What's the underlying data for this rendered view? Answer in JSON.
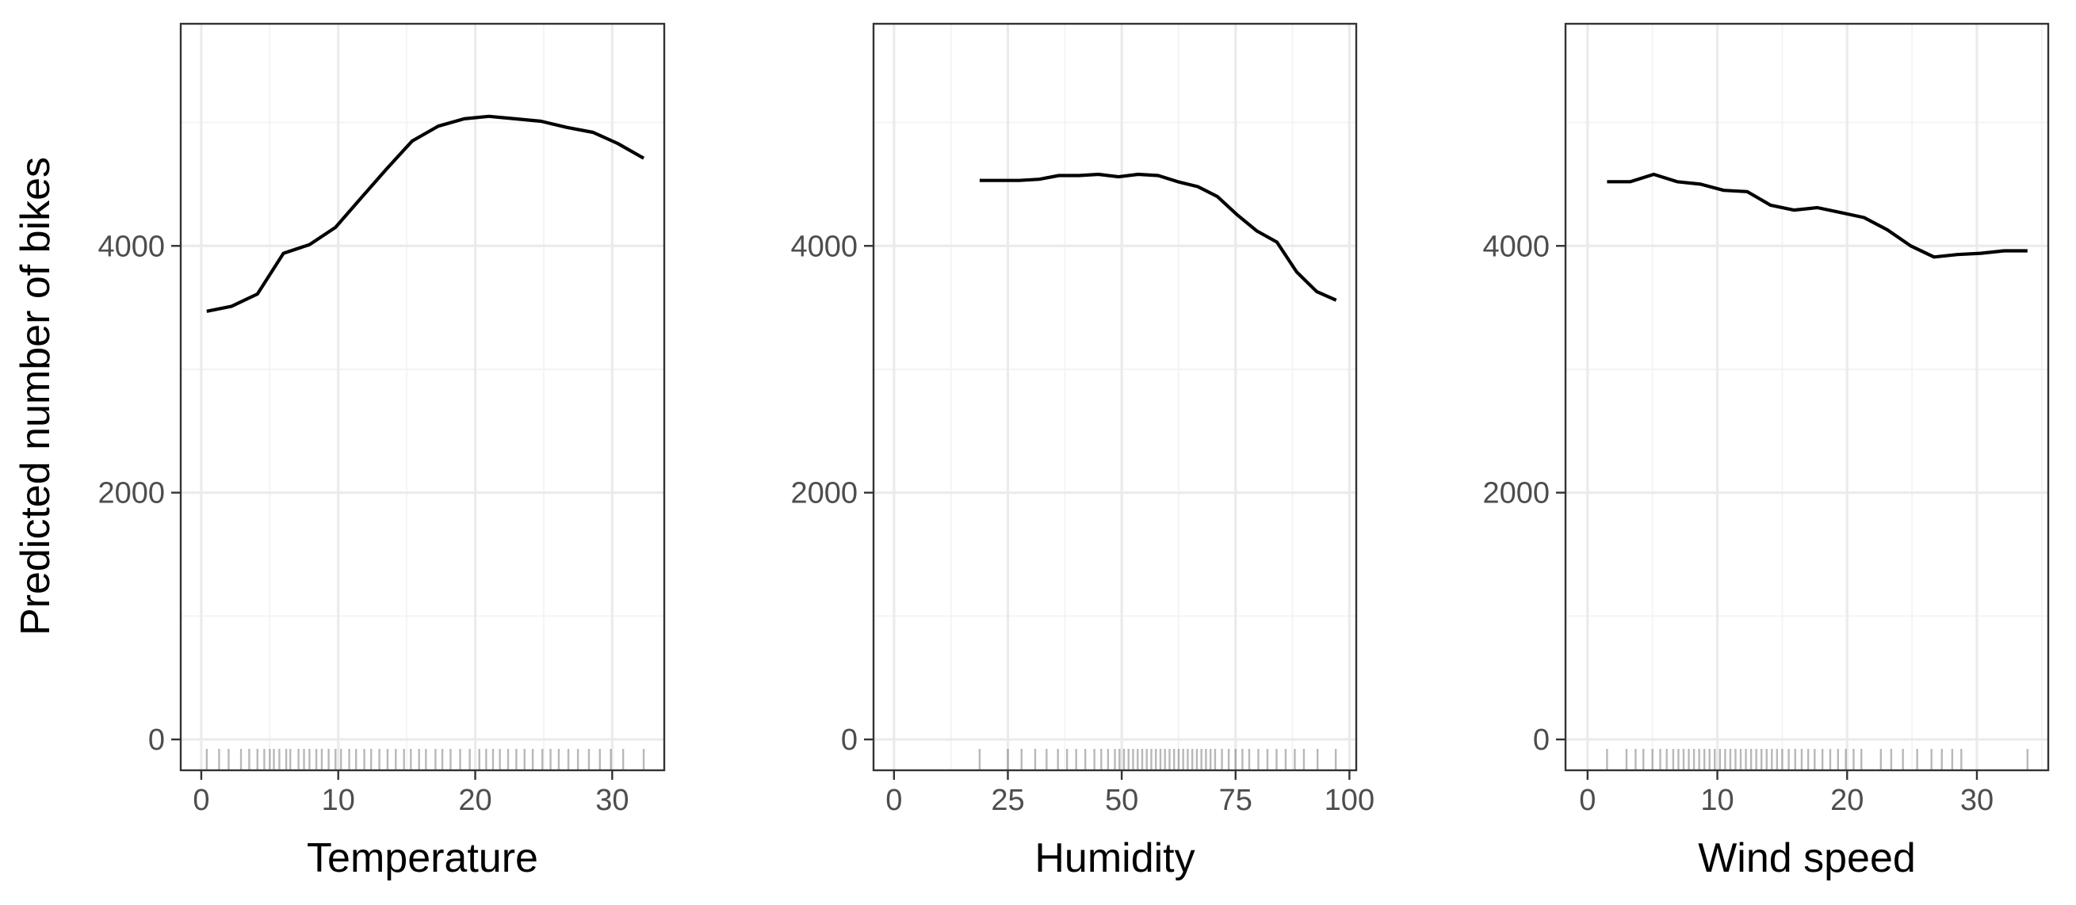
{
  "colors": {
    "background": "#ffffff",
    "panel_border": "#333333",
    "grid_major": "#ebebeb",
    "grid_minor": "#f4f4f4",
    "line": "#000000",
    "rug": "#000000",
    "tick_label": "#4d4d4d"
  },
  "chart_data": [
    {
      "type": "line",
      "id": "temperature",
      "xlabel": "Temperature",
      "ylabel": "Predicted number of bikes",
      "xlim": [
        -1.5,
        33.8
      ],
      "ylim": [
        -250,
        5800
      ],
      "xticks": [
        0,
        10,
        20,
        30
      ],
      "yticks": [
        0,
        2000,
        4000
      ],
      "grid": true,
      "x": [
        0.4,
        2.2,
        4.1,
        6.0,
        7.9,
        9.8,
        11.6,
        13.5,
        15.4,
        17.3,
        19.2,
        21.0,
        22.9,
        24.8,
        26.7,
        28.6,
        30.4,
        32.3
      ],
      "y": [
        3470,
        3510,
        3610,
        3940,
        4010,
        4150,
        4380,
        4620,
        4850,
        4970,
        5030,
        5050,
        5030,
        5010,
        4960,
        4920,
        4830,
        4710
      ],
      "rug": [
        0.4,
        1.3,
        2.0,
        2.9,
        3.5,
        4.1,
        4.6,
        5.0,
        5.3,
        5.7,
        6.2,
        6.5,
        7.1,
        7.5,
        7.9,
        8.4,
        8.8,
        9.3,
        9.8,
        10.2,
        10.8,
        11.3,
        11.9,
        12.4,
        13.0,
        13.6,
        14.2,
        14.8,
        15.3,
        15.9,
        16.4,
        17.1,
        17.6,
        18.2,
        18.9,
        19.6,
        20.3,
        20.8,
        21.3,
        21.8,
        22.4,
        23.0,
        23.6,
        24.2,
        24.9,
        25.5,
        26.1,
        26.8,
        27.5,
        28.3,
        29.1,
        29.9,
        30.8,
        32.3
      ]
    },
    {
      "type": "line",
      "id": "humidity",
      "xlabel": "Humidity",
      "ylabel": "",
      "xlim": [
        -4.5,
        101.5
      ],
      "ylim": [
        -250,
        5800
      ],
      "xticks": [
        0,
        25,
        50,
        75,
        100
      ],
      "yticks": [
        0,
        2000,
        4000
      ],
      "grid": true,
      "x": [
        18.8,
        23.2,
        27.5,
        31.9,
        36.2,
        40.6,
        44.9,
        49.3,
        53.6,
        58.0,
        62.3,
        66.7,
        71.0,
        75.4,
        79.7,
        84.1,
        88.4,
        92.8,
        97.1
      ],
      "y": [
        4530,
        4530,
        4530,
        4540,
        4570,
        4570,
        4580,
        4560,
        4580,
        4570,
        4520,
        4480,
        4400,
        4250,
        4120,
        4030,
        3790,
        3630,
        3560
      ],
      "rug": [
        18.8,
        25.0,
        28.0,
        31.0,
        33.5,
        36.0,
        38.0,
        40.0,
        42.0,
        44.0,
        45.5,
        47.0,
        48.5,
        49.5,
        50.5,
        51.5,
        52.5,
        53.5,
        54.5,
        55.5,
        56.5,
        57.5,
        58.5,
        59.5,
        60.5,
        61.5,
        62.5,
        63.5,
        64.5,
        65.5,
        66.5,
        67.5,
        68.5,
        69.5,
        70.5,
        72.0,
        73.5,
        75.0,
        76.5,
        78.0,
        80.0,
        82.0,
        84.0,
        86.0,
        88.0,
        90.0,
        93.0,
        97.0
      ]
    },
    {
      "type": "line",
      "id": "wind-speed",
      "xlabel": "Wind speed",
      "ylabel": "",
      "xlim": [
        -1.7,
        35.5
      ],
      "ylim": [
        -250,
        5800
      ],
      "xticks": [
        0,
        10,
        20,
        30
      ],
      "yticks": [
        0,
        2000,
        4000
      ],
      "grid": true,
      "x": [
        1.5,
        3.3,
        5.1,
        6.9,
        8.7,
        10.5,
        12.3,
        14.1,
        15.9,
        17.7,
        19.5,
        21.3,
        23.1,
        24.9,
        26.7,
        28.5,
        30.3,
        32.1,
        33.9
      ],
      "y": [
        4520,
        4520,
        4580,
        4520,
        4500,
        4450,
        4440,
        4330,
        4290,
        4310,
        4270,
        4230,
        4130,
        4000,
        3910,
        3930,
        3940,
        3960,
        3960
      ],
      "rug": [
        1.5,
        3.0,
        3.7,
        4.3,
        5.0,
        5.6,
        6.1,
        6.6,
        7.0,
        7.4,
        7.8,
        8.2,
        8.6,
        9.0,
        9.4,
        9.8,
        10.2,
        10.6,
        11.0,
        11.4,
        11.8,
        12.2,
        12.6,
        13.0,
        13.4,
        13.8,
        14.2,
        14.6,
        15.0,
        15.5,
        16.0,
        16.5,
        17.0,
        17.5,
        18.1,
        18.7,
        19.3,
        19.9,
        20.5,
        21.1,
        22.6,
        23.4,
        24.3,
        25.4,
        26.5,
        27.3,
        28.1,
        28.8,
        33.9
      ]
    }
  ]
}
